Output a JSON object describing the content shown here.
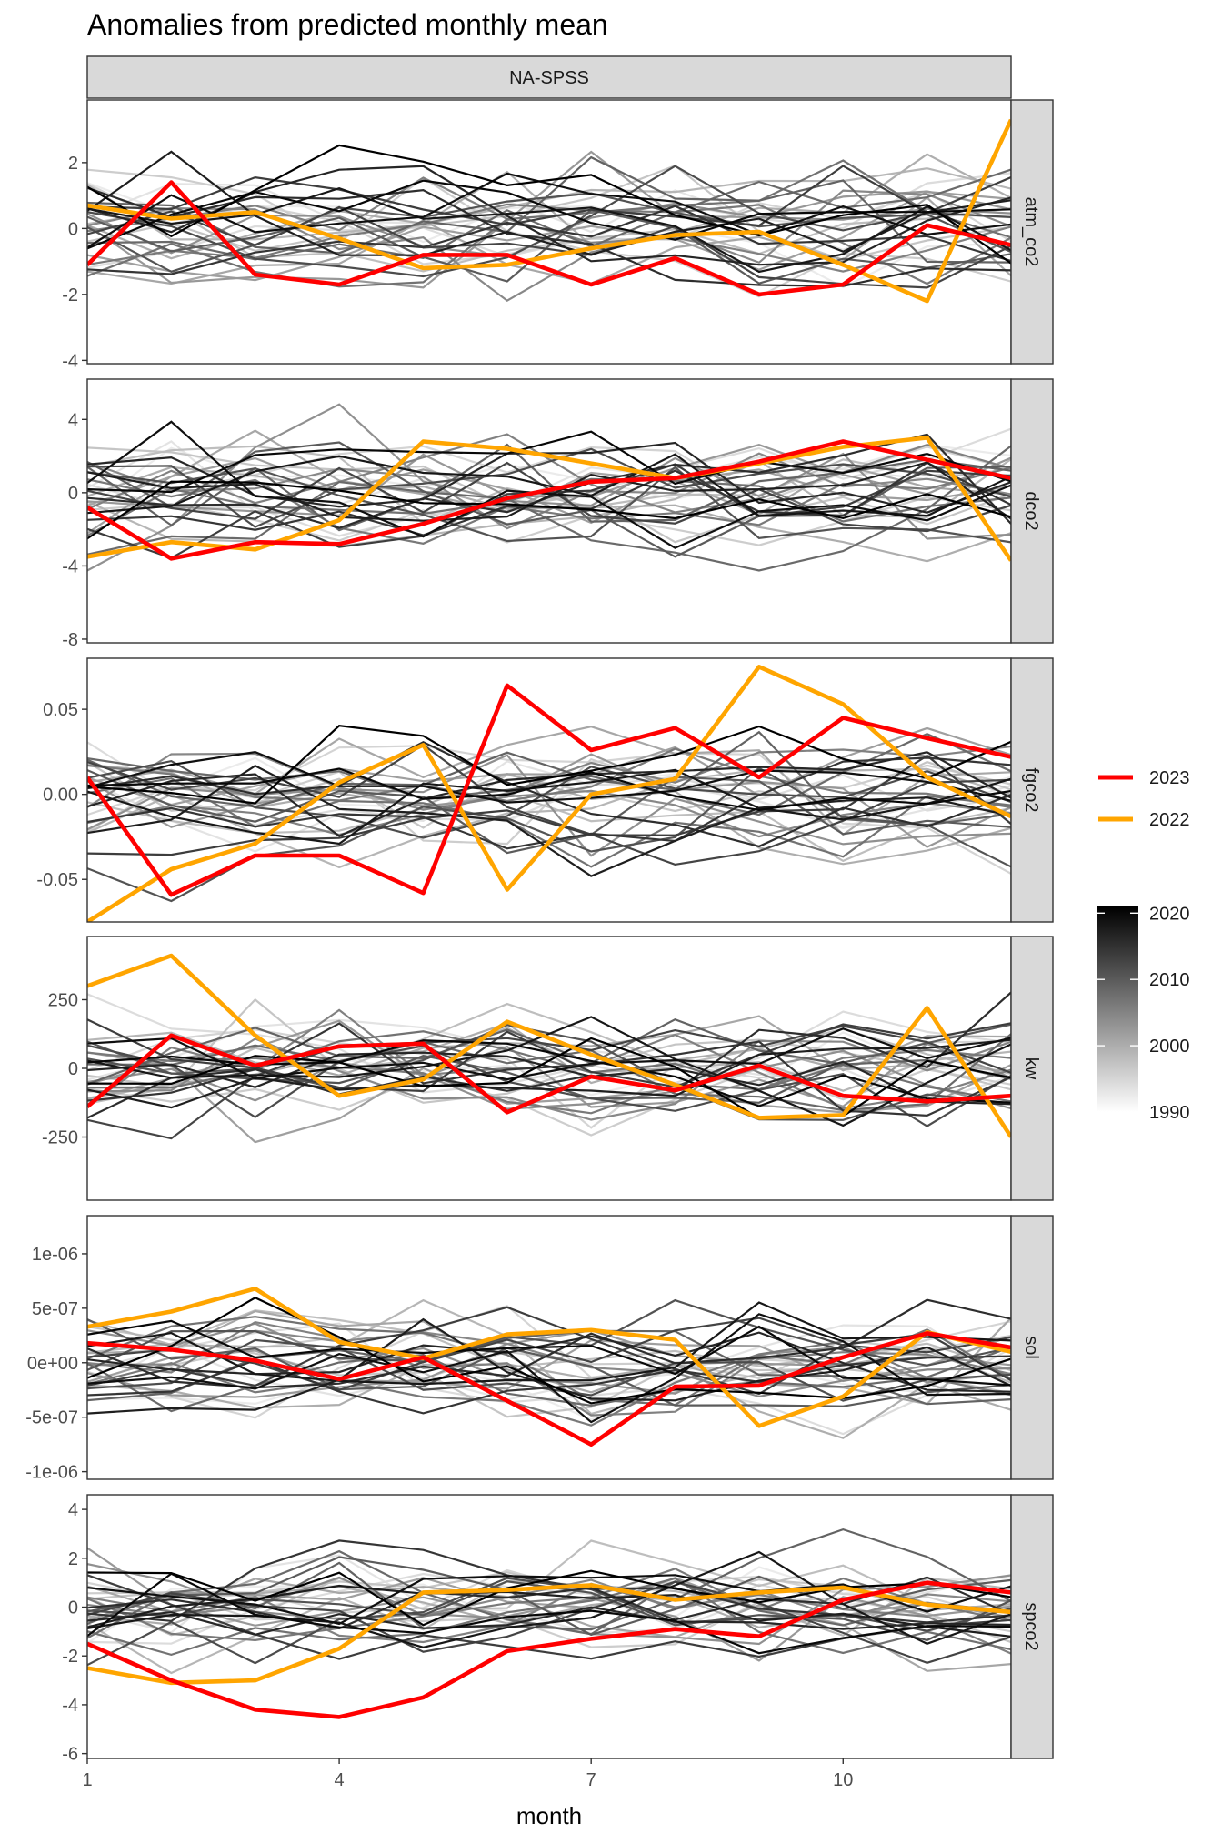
{
  "chart_data": {
    "type": "line",
    "title": "Anomalies from predicted monthly mean",
    "facet_top": "NA-SPSS",
    "xlabel": "month",
    "x_ticks": [
      1,
      4,
      7,
      10
    ],
    "xlim": [
      1,
      12
    ],
    "x": [
      1,
      2,
      3,
      4,
      5,
      6,
      7,
      8,
      9,
      10,
      11,
      12
    ],
    "background_years": {
      "from": 1990,
      "to": 2021
    },
    "highlight_legend": [
      {
        "name": "2023",
        "color": "#ff0000"
      },
      {
        "name": "2022",
        "color": "#ffa500"
      }
    ],
    "year_colorbar": {
      "min": 1990,
      "max": 2021,
      "ticks": [
        "2020",
        "2010",
        "2000",
        "1990"
      ],
      "low_color": "#ffffff",
      "high_color": "#000000"
    },
    "panels": [
      {
        "name": "atm_co2",
        "ylim": [
          -4.1,
          3.9
        ],
        "y_ticks": [
          -4,
          -2,
          0,
          2
        ],
        "y_tick_labels": [
          "-4",
          "-2",
          "0",
          "2"
        ],
        "series": [
          {
            "name": "2023",
            "values": [
              -1.1,
              1.4,
              -1.4,
              -1.7,
              -0.8,
              -0.8,
              -1.7,
              -0.9,
              -2.0,
              -1.7,
              0.1,
              -0.5
            ]
          },
          {
            "name": "2022",
            "values": [
              0.7,
              0.3,
              0.5,
              -0.3,
              -1.2,
              -1.1,
              -0.6,
              -0.2,
              -0.1,
              -1.1,
              -2.2,
              3.3
            ]
          }
        ],
        "background_amplitude": 1.6
      },
      {
        "name": "dco2",
        "ylim": [
          -8.2,
          6.2
        ],
        "y_ticks": [
          -8,
          -4,
          0,
          4
        ],
        "y_tick_labels": [
          "-8",
          "-4",
          "0",
          "4"
        ],
        "series": [
          {
            "name": "2023",
            "values": [
              -0.8,
              -3.6,
              -2.7,
              -2.8,
              -1.7,
              -0.3,
              0.6,
              0.8,
              1.7,
              2.8,
              1.8,
              0.8
            ]
          },
          {
            "name": "2022",
            "values": [
              -3.5,
              -2.7,
              -3.1,
              -1.5,
              2.8,
              2.4,
              1.6,
              0.8,
              1.6,
              2.5,
              3.0,
              -3.7
            ]
          }
        ],
        "background_amplitude": 2.8
      },
      {
        "name": "fgco2",
        "ylim": [
          -0.075,
          0.08
        ],
        "y_ticks": [
          -0.05,
          0,
          0.05
        ],
        "y_tick_labels": [
          "-0.05",
          "0.00",
          "0.05"
        ],
        "series": [
          {
            "name": "2023",
            "values": [
              0.01,
              -0.059,
              -0.036,
              -0.036,
              -0.058,
              0.064,
              0.026,
              0.039,
              0.01,
              0.045,
              0.033,
              0.022
            ]
          },
          {
            "name": "2022",
            "values": [
              -0.075,
              -0.044,
              -0.029,
              0.007,
              0.029,
              -0.056,
              0.0,
              0.009,
              0.075,
              0.053,
              0.01,
              -0.013
            ]
          }
        ],
        "background_amplitude": 0.03
      },
      {
        "name": "kw",
        "ylim": [
          -480,
          480
        ],
        "y_ticks": [
          -250,
          0,
          250
        ],
        "y_tick_labels": [
          "-250",
          "0",
          "250"
        ],
        "series": [
          {
            "name": "2023",
            "values": [
              -140,
              120,
              10,
              80,
              90,
              -160,
              -30,
              -80,
              10,
              -100,
              -120,
              -100
            ]
          },
          {
            "name": "2022",
            "values": [
              300,
              410,
              120,
              -100,
              -40,
              170,
              50,
              -60,
              -180,
              -170,
              220,
              -250
            ]
          }
        ],
        "background_amplitude": 180
      },
      {
        "name": "sol",
        "ylim": [
          -1.07e-06,
          1.35e-06
        ],
        "y_ticks": [
          -1e-06,
          -5e-07,
          0,
          5e-07,
          1e-06
        ],
        "y_tick_labels": [
          "-1e-06",
          "-5e-07",
          "0e+00",
          "5e-07",
          "1e-06"
        ],
        "series": [
          {
            "name": "2023",
            "values": [
              1.8e-07,
              1.2e-07,
              2e-08,
              -1.5e-07,
              5e-08,
              -3.5e-07,
              -7.5e-07,
              -2.2e-07,
              -2.1e-07,
              5e-08,
              2.7e-07,
              1.4e-07
            ]
          },
          {
            "name": "2022",
            "values": [
              3.3e-07,
              4.7e-07,
              6.8e-07,
              1.9e-07,
              4e-08,
              2.6e-07,
              3e-07,
              2.1e-07,
              -5.8e-07,
              -3.1e-07,
              2.8e-07,
              1e-07
            ]
          }
        ],
        "background_amplitude": 4.5e-07
      },
      {
        "name": "spco2",
        "ylim": [
          -6.2,
          4.6
        ],
        "y_ticks": [
          -6,
          -4,
          -2,
          0,
          2,
          4
        ],
        "y_tick_labels": [
          "-6",
          "-4",
          "-2",
          "0",
          "2",
          "4"
        ],
        "series": [
          {
            "name": "2023",
            "values": [
              -1.5,
              -3.0,
              -4.2,
              -4.5,
              -3.7,
              -1.8,
              -1.3,
              -0.9,
              -1.2,
              0.3,
              1.0,
              0.6
            ]
          },
          {
            "name": "2022",
            "values": [
              -2.5,
              -3.1,
              -3.0,
              -1.7,
              0.6,
              0.7,
              0.9,
              0.3,
              0.6,
              0.8,
              0.1,
              -0.2
            ]
          }
        ],
        "background_amplitude": 1.7
      }
    ]
  }
}
